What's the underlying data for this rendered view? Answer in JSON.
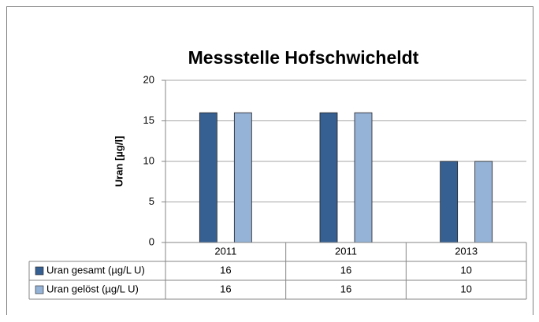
{
  "chart_data": {
    "type": "bar",
    "title": "Messstelle Hofschwicheldt",
    "y_label": "Uran [µg/l]",
    "categories": [
      "2011",
      "2011",
      "2013"
    ],
    "series": [
      {
        "name": "Uran gesamt (µg/L U)",
        "color": "#376092",
        "values": [
          16,
          16,
          10
        ]
      },
      {
        "name": "Uran gelöst (µg/L U)",
        "color": "#95b3d7",
        "values": [
          16,
          16,
          10
        ]
      }
    ],
    "ylim": [
      0,
      20
    ],
    "yticks": [
      0,
      5,
      10,
      15,
      20
    ],
    "grid": true,
    "data_table": true
  }
}
